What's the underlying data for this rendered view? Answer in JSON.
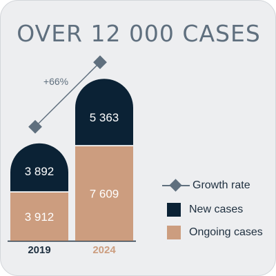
{
  "title": "OVER 12 000 CASES",
  "chart_data": {
    "type": "bar",
    "stacked": true,
    "categories": [
      "2019",
      "2024"
    ],
    "series": [
      {
        "name": "Ongoing cases",
        "values": [
          3912,
          7609
        ],
        "labels": [
          "3 912",
          "7 609"
        ],
        "color": "#cc9d7f"
      },
      {
        "name": "New cases",
        "values": [
          3892,
          5363
        ],
        "labels": [
          "3 892",
          "5 363"
        ],
        "color": "#0b2235"
      }
    ],
    "line": {
      "name": "Growth rate",
      "annotation": "+66%",
      "color": "#5f6f7e"
    },
    "category_colors": [
      "#1e2f3f",
      "#cc9d7f"
    ],
    "legend_position": "right",
    "grid": false
  },
  "legend": [
    {
      "label": "Growth rate",
      "kind": "line-diamond",
      "color": "#5f6f7e"
    },
    {
      "label": "New cases",
      "kind": "square",
      "color": "#0b2235"
    },
    {
      "label": "Ongoing cases",
      "kind": "square",
      "color": "#cc9d7f"
    }
  ]
}
